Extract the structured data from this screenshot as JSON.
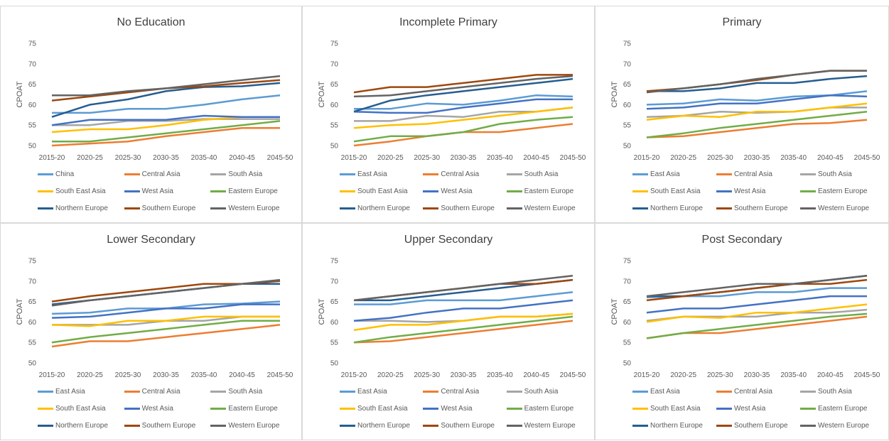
{
  "y_axis_label": "CPOAT",
  "chart_data": [
    {
      "type": "line",
      "title": "No Education",
      "ylabel": "CPOAT",
      "ylim": [
        50,
        75
      ],
      "yticks": [
        50,
        55,
        60,
        65,
        70,
        75
      ],
      "categories": [
        "2015-20",
        "2020-25",
        "2025-30",
        "2030-35",
        "2035-40",
        "2040-45",
        "2045-50"
      ],
      "series": [
        {
          "name": "China",
          "color": "#5B9BD5",
          "values": [
            58.0,
            58.0,
            59.0,
            59.0,
            60.0,
            61.3,
            62.3
          ]
        },
        {
          "name": "Central Asia",
          "color": "#ED7D31",
          "values": [
            50.0,
            50.5,
            51.0,
            52.3,
            53.3,
            54.3,
            54.3
          ]
        },
        {
          "name": "South Asia",
          "color": "#A5A5A5",
          "values": [
            55.0,
            55.0,
            56.0,
            56.0,
            56.5,
            56.5,
            56.5
          ]
        },
        {
          "name": "South East Asia",
          "color": "#FFC000",
          "values": [
            53.3,
            54.0,
            54.0,
            55.0,
            56.3,
            57.0,
            57.0
          ]
        },
        {
          "name": "West Asia",
          "color": "#4472C4",
          "values": [
            55.0,
            56.3,
            56.3,
            56.3,
            57.3,
            57.0,
            57.0
          ]
        },
        {
          "name": "Eastern Europe",
          "color": "#70AD47",
          "values": [
            51.0,
            51.0,
            52.0,
            53.0,
            54.0,
            55.0,
            56.0
          ]
        },
        {
          "name": "Northern Europe",
          "color": "#255E91",
          "values": [
            57.0,
            60.0,
            61.3,
            63.3,
            64.3,
            64.5,
            65.3
          ]
        },
        {
          "name": "Southern Europe",
          "color": "#9E480E",
          "values": [
            61.0,
            62.0,
            63.0,
            64.0,
            64.5,
            65.3,
            66.0
          ]
        },
        {
          "name": "Western Europe",
          "color": "#636363",
          "values": [
            62.3,
            62.3,
            63.3,
            64.0,
            65.0,
            66.0,
            67.0
          ]
        }
      ]
    },
    {
      "type": "line",
      "title": "Incomplete Primary",
      "ylabel": "CPOAT",
      "ylim": [
        50,
        75
      ],
      "yticks": [
        50,
        55,
        60,
        65,
        70,
        75
      ],
      "categories": [
        "2015-20",
        "2020-25",
        "2025-30",
        "2030-35",
        "2035-40",
        "2040-45",
        "2045-50"
      ],
      "series": [
        {
          "name": "East Asia",
          "color": "#5B9BD5",
          "values": [
            59.0,
            59.0,
            60.3,
            60.0,
            61.0,
            62.3,
            62.0
          ]
        },
        {
          "name": "Central Asia",
          "color": "#ED7D31",
          "values": [
            50.0,
            51.0,
            52.3,
            53.3,
            53.3,
            54.3,
            55.3
          ]
        },
        {
          "name": "South Asia",
          "color": "#A5A5A5",
          "values": [
            56.0,
            56.0,
            57.3,
            57.0,
            58.3,
            58.3,
            59.3
          ]
        },
        {
          "name": "South East Asia",
          "color": "#FFC000",
          "values": [
            54.3,
            55.0,
            55.3,
            56.3,
            57.3,
            58.3,
            59.3
          ]
        },
        {
          "name": "West Asia",
          "color": "#4472C4",
          "values": [
            58.3,
            58.0,
            58.0,
            59.3,
            60.3,
            61.3,
            61.3
          ]
        },
        {
          "name": "Eastern Europe",
          "color": "#70AD47",
          "values": [
            51.0,
            52.3,
            52.3,
            53.3,
            55.3,
            56.3,
            57.0
          ]
        },
        {
          "name": "Northern Europe",
          "color": "#255E91",
          "values": [
            58.3,
            61.0,
            62.3,
            63.3,
            64.3,
            65.3,
            66.3
          ]
        },
        {
          "name": "Southern Europe",
          "color": "#9E480E",
          "values": [
            63.0,
            64.3,
            64.3,
            65.3,
            66.3,
            67.3,
            67.3
          ]
        },
        {
          "name": "Western Europe",
          "color": "#636363",
          "values": [
            62.0,
            62.3,
            63.3,
            64.3,
            65.3,
            66.3,
            67.0
          ]
        }
      ]
    },
    {
      "type": "line",
      "title": "Primary",
      "ylabel": "CPOAT",
      "ylim": [
        50,
        75
      ],
      "yticks": [
        50,
        55,
        60,
        65,
        70,
        75
      ],
      "categories": [
        "2015-20",
        "2020-25",
        "2025-30",
        "2030-35",
        "2035-40",
        "2040-45",
        "2045-50"
      ],
      "series": [
        {
          "name": "East Asia",
          "color": "#5B9BD5",
          "values": [
            60.0,
            60.3,
            61.3,
            61.0,
            62.0,
            62.3,
            63.3
          ]
        },
        {
          "name": "Central Asia",
          "color": "#ED7D31",
          "values": [
            52.0,
            52.3,
            53.3,
            54.3,
            55.3,
            55.5,
            56.3
          ]
        },
        {
          "name": "South Asia",
          "color": "#A5A5A5",
          "values": [
            57.0,
            57.3,
            58.3,
            58.0,
            58.3,
            59.3,
            59.3
          ]
        },
        {
          "name": "South East Asia",
          "color": "#FFC000",
          "values": [
            56.3,
            57.3,
            57.0,
            58.3,
            58.3,
            59.3,
            60.3
          ]
        },
        {
          "name": "West Asia",
          "color": "#4472C4",
          "values": [
            59.0,
            59.3,
            60.3,
            60.3,
            61.3,
            62.3,
            62.0
          ]
        },
        {
          "name": "Eastern Europe",
          "color": "#70AD47",
          "values": [
            52.0,
            53.0,
            54.3,
            55.3,
            56.3,
            57.3,
            58.3
          ]
        },
        {
          "name": "Northern Europe",
          "color": "#255E91",
          "values": [
            63.3,
            63.3,
            64.0,
            65.3,
            65.3,
            66.3,
            67.0
          ]
        },
        {
          "name": "Southern Europe",
          "color": "#9E480E",
          "values": [
            63.3,
            64.0,
            65.0,
            66.0,
            67.3,
            68.3,
            68.3
          ]
        },
        {
          "name": "Western Europe",
          "color": "#636363",
          "values": [
            63.0,
            64.0,
            65.0,
            66.3,
            67.3,
            68.3,
            68.3
          ]
        }
      ]
    },
    {
      "type": "line",
      "title": "Lower Secondary",
      "ylabel": "CPOAT",
      "ylim": [
        50,
        75
      ],
      "yticks": [
        50,
        55,
        60,
        65,
        70,
        75
      ],
      "categories": [
        "2015-20",
        "2020-25",
        "2025-30",
        "2030-35",
        "2035-40",
        "2040-45",
        "2045-50"
      ],
      "series": [
        {
          "name": "East Asia",
          "color": "#5B9BD5",
          "values": [
            62.0,
            62.3,
            63.3,
            63.3,
            64.3,
            64.5,
            65.0
          ]
        },
        {
          "name": "Central Asia",
          "color": "#ED7D31",
          "values": [
            54.0,
            55.3,
            55.3,
            56.3,
            57.3,
            58.3,
            59.3
          ]
        },
        {
          "name": "South Asia",
          "color": "#A5A5A5",
          "values": [
            59.3,
            59.3,
            59.3,
            60.3,
            60.3,
            61.3,
            61.3
          ]
        },
        {
          "name": "South East Asia",
          "color": "#FFC000",
          "values": [
            59.3,
            59.0,
            60.3,
            60.3,
            61.3,
            61.3,
            61.3
          ]
        },
        {
          "name": "West Asia",
          "color": "#4472C4",
          "values": [
            61.0,
            61.3,
            62.3,
            63.3,
            63.3,
            64.3,
            64.3
          ]
        },
        {
          "name": "Eastern Europe",
          "color": "#70AD47",
          "values": [
            55.0,
            56.3,
            57.3,
            58.3,
            59.3,
            60.3,
            60.3
          ]
        },
        {
          "name": "Northern Europe",
          "color": "#255E91",
          "values": [
            64.3,
            65.3,
            66.3,
            67.3,
            68.3,
            69.3,
            69.3
          ]
        },
        {
          "name": "Southern Europe",
          "color": "#9E480E",
          "values": [
            65.0,
            66.3,
            67.3,
            68.3,
            69.3,
            69.3,
            70.0
          ]
        },
        {
          "name": "Western Europe",
          "color": "#636363",
          "values": [
            64.0,
            65.3,
            66.3,
            67.3,
            68.3,
            69.3,
            70.3
          ]
        }
      ]
    },
    {
      "type": "line",
      "title": "Upper Secondary",
      "ylabel": "CPOAT",
      "ylim": [
        50,
        75
      ],
      "yticks": [
        50,
        55,
        60,
        65,
        70,
        75
      ],
      "categories": [
        "2015-20",
        "2020-25",
        "2025-30",
        "2030-35",
        "2035-40",
        "2040-45",
        "2045-50"
      ],
      "series": [
        {
          "name": "East Asia",
          "color": "#5B9BD5",
          "values": [
            64.3,
            64.3,
            65.3,
            65.3,
            65.3,
            66.3,
            67.3
          ]
        },
        {
          "name": "Central Asia",
          "color": "#ED7D31",
          "values": [
            55.0,
            55.3,
            56.3,
            57.3,
            58.3,
            59.3,
            60.3
          ]
        },
        {
          "name": "South Asia",
          "color": "#A5A5A5",
          "values": [
            60.3,
            60.3,
            60.0,
            60.3,
            61.3,
            61.3,
            62.0
          ]
        },
        {
          "name": "South East Asia",
          "color": "#FFC000",
          "values": [
            58.0,
            59.3,
            59.3,
            60.3,
            61.3,
            61.3,
            62.0
          ]
        },
        {
          "name": "West Asia",
          "color": "#4472C4",
          "values": [
            60.3,
            61.0,
            62.3,
            63.3,
            63.3,
            64.3,
            65.3
          ]
        },
        {
          "name": "Eastern Europe",
          "color": "#70AD47",
          "values": [
            55.0,
            56.3,
            57.3,
            58.3,
            59.3,
            60.3,
            61.3
          ]
        },
        {
          "name": "Northern Europe",
          "color": "#255E91",
          "values": [
            65.3,
            65.3,
            66.3,
            67.3,
            68.3,
            69.3,
            70.3
          ]
        },
        {
          "name": "Southern Europe",
          "color": "#9E480E",
          "values": [
            65.3,
            66.3,
            67.3,
            68.3,
            69.3,
            69.3,
            70.3
          ]
        },
        {
          "name": "Western Europe",
          "color": "#636363",
          "values": [
            65.3,
            66.3,
            67.3,
            68.3,
            69.3,
            70.3,
            71.3
          ]
        }
      ]
    },
    {
      "type": "line",
      "title": "Post Secondary",
      "ylabel": "CPOAT",
      "ylim": [
        50,
        75
      ],
      "yticks": [
        50,
        55,
        60,
        65,
        70,
        75
      ],
      "categories": [
        "2015-20",
        "2020-25",
        "2025-30",
        "2030-35",
        "2035-40",
        "2040-45",
        "2045-50"
      ],
      "series": [
        {
          "name": "East Asia",
          "color": "#5B9BD5",
          "values": [
            66.0,
            66.3,
            66.3,
            67.3,
            67.3,
            68.3,
            68.3
          ]
        },
        {
          "name": "Central Asia",
          "color": "#ED7D31",
          "values": [
            56.0,
            57.3,
            57.3,
            58.3,
            59.3,
            60.3,
            61.3
          ]
        },
        {
          "name": "South Asia",
          "color": "#A5A5A5",
          "values": [
            60.3,
            61.3,
            61.3,
            61.3,
            62.3,
            62.3,
            63.0
          ]
        },
        {
          "name": "South East Asia",
          "color": "#FFC000",
          "values": [
            60.0,
            61.3,
            61.0,
            62.3,
            62.3,
            63.3,
            64.3
          ]
        },
        {
          "name": "West Asia",
          "color": "#4472C4",
          "values": [
            62.3,
            63.3,
            63.3,
            64.3,
            65.3,
            66.3,
            66.3
          ]
        },
        {
          "name": "Eastern Europe",
          "color": "#70AD47",
          "values": [
            56.0,
            57.3,
            58.3,
            59.3,
            60.3,
            61.3,
            62.0
          ]
        },
        {
          "name": "Northern Europe",
          "color": "#255E91",
          "values": [
            66.3,
            66.3,
            67.3,
            68.3,
            69.3,
            70.3,
            71.3
          ]
        },
        {
          "name": "Southern Europe",
          "color": "#9E480E",
          "values": [
            65.3,
            66.3,
            67.3,
            68.3,
            69.3,
            69.3,
            70.3
          ]
        },
        {
          "name": "Western Europe",
          "color": "#636363",
          "values": [
            66.3,
            67.3,
            68.3,
            69.3,
            69.3,
            70.3,
            71.3
          ]
        }
      ]
    }
  ]
}
